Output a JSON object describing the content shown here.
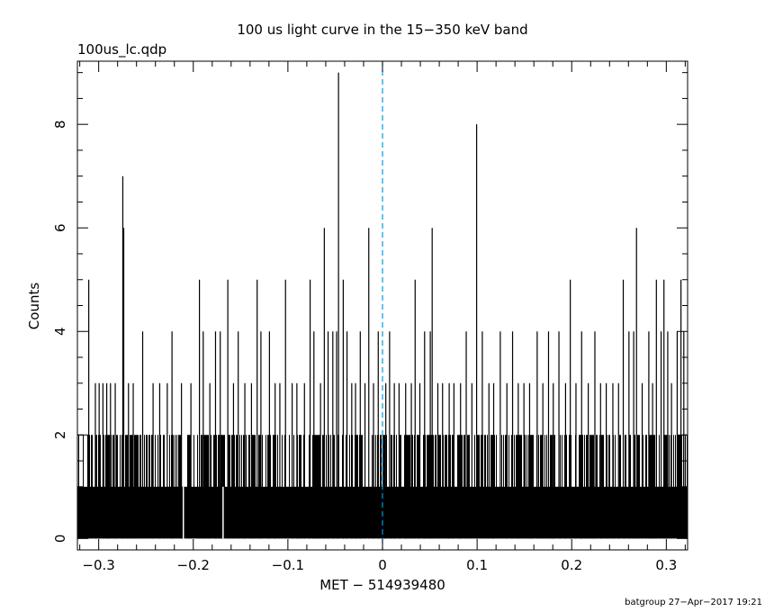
{
  "chart_data": {
    "type": "bar",
    "title": "100 us light curve in the 15−350 keV band",
    "file_label": "100us_lc.qdp",
    "xlabel": "MET − 514939480",
    "ylabel": "Counts",
    "footer": "batgroup 27−Apr−2017 19:21",
    "xlim": [
      -0.3225,
      0.3225
    ],
    "ylim": [
      -0.22,
      9.22
    ],
    "bin_width": 0.0001,
    "x_ticks": [
      -0.3,
      -0.2,
      -0.1,
      0,
      0.1,
      0.2,
      0.3
    ],
    "x_tick_labels": [
      "−0.3",
      "−0.2",
      "−0.1",
      "0",
      "0.1",
      "0.2",
      "0.3"
    ],
    "y_ticks": [
      0,
      2,
      4,
      6,
      8
    ],
    "y_tick_labels": [
      "0",
      "2",
      "4",
      "6",
      "8"
    ],
    "reference_line": {
      "x": 0,
      "color": "#1a8fd0",
      "style": "dashed"
    },
    "baseline_level": 1,
    "frequent_level": 2,
    "gaps": [
      -0.2105,
      -0.1685
    ],
    "spikes": [
      {
        "x": -0.3105,
        "y": 5
      },
      {
        "x": -0.3035,
        "y": 3
      },
      {
        "x": -0.2995,
        "y": 3
      },
      {
        "x": -0.2955,
        "y": 3
      },
      {
        "x": -0.2915,
        "y": 3
      },
      {
        "x": -0.2875,
        "y": 3
      },
      {
        "x": -0.2825,
        "y": 3
      },
      {
        "x": -0.2745,
        "y": 7
      },
      {
        "x": -0.2735,
        "y": 6
      },
      {
        "x": -0.2685,
        "y": 3
      },
      {
        "x": -0.2635,
        "y": 3
      },
      {
        "x": -0.2535,
        "y": 4
      },
      {
        "x": -0.2425,
        "y": 3
      },
      {
        "x": -0.2355,
        "y": 3
      },
      {
        "x": -0.2275,
        "y": 3
      },
      {
        "x": -0.2225,
        "y": 4
      },
      {
        "x": -0.2125,
        "y": 3
      },
      {
        "x": -0.2025,
        "y": 3
      },
      {
        "x": -0.1935,
        "y": 5
      },
      {
        "x": -0.1895,
        "y": 4
      },
      {
        "x": -0.1825,
        "y": 3
      },
      {
        "x": -0.1765,
        "y": 4
      },
      {
        "x": -0.1715,
        "y": 4
      },
      {
        "x": -0.1635,
        "y": 5
      },
      {
        "x": -0.1575,
        "y": 3
      },
      {
        "x": -0.1525,
        "y": 4
      },
      {
        "x": -0.1455,
        "y": 3
      },
      {
        "x": -0.1385,
        "y": 3
      },
      {
        "x": -0.1325,
        "y": 5
      },
      {
        "x": -0.1285,
        "y": 4
      },
      {
        "x": -0.1195,
        "y": 4
      },
      {
        "x": -0.1135,
        "y": 3
      },
      {
        "x": -0.1085,
        "y": 3
      },
      {
        "x": -0.1025,
        "y": 5
      },
      {
        "x": -0.0955,
        "y": 3
      },
      {
        "x": -0.0905,
        "y": 3
      },
      {
        "x": -0.0825,
        "y": 3
      },
      {
        "x": -0.0765,
        "y": 5
      },
      {
        "x": -0.0725,
        "y": 4
      },
      {
        "x": -0.0655,
        "y": 3
      },
      {
        "x": -0.0615,
        "y": 6
      },
      {
        "x": -0.0575,
        "y": 4
      },
      {
        "x": -0.0525,
        "y": 4
      },
      {
        "x": -0.0485,
        "y": 4
      },
      {
        "x": -0.0465,
        "y": 9
      },
      {
        "x": -0.0415,
        "y": 5
      },
      {
        "x": -0.0375,
        "y": 4
      },
      {
        "x": -0.0325,
        "y": 3
      },
      {
        "x": -0.0285,
        "y": 3
      },
      {
        "x": -0.0235,
        "y": 4
      },
      {
        "x": -0.0185,
        "y": 3
      },
      {
        "x": -0.0145,
        "y": 6
      },
      {
        "x": -0.0095,
        "y": 3
      },
      {
        "x": -0.0045,
        "y": 4
      },
      {
        "x": 0.0035,
        "y": 3
      },
      {
        "x": 0.0075,
        "y": 4
      },
      {
        "x": 0.0125,
        "y": 3
      },
      {
        "x": 0.0175,
        "y": 3
      },
      {
        "x": 0.0245,
        "y": 3
      },
      {
        "x": 0.0305,
        "y": 3
      },
      {
        "x": 0.0345,
        "y": 5
      },
      {
        "x": 0.0395,
        "y": 3
      },
      {
        "x": 0.0445,
        "y": 4
      },
      {
        "x": 0.0505,
        "y": 4
      },
      {
        "x": 0.0525,
        "y": 6
      },
      {
        "x": 0.0585,
        "y": 3
      },
      {
        "x": 0.0635,
        "y": 3
      },
      {
        "x": 0.0705,
        "y": 3
      },
      {
        "x": 0.0755,
        "y": 3
      },
      {
        "x": 0.0825,
        "y": 3
      },
      {
        "x": 0.0885,
        "y": 4
      },
      {
        "x": 0.0945,
        "y": 3
      },
      {
        "x": 0.0995,
        "y": 8
      },
      {
        "x": 0.1055,
        "y": 4
      },
      {
        "x": 0.1125,
        "y": 3
      },
      {
        "x": 0.1175,
        "y": 3
      },
      {
        "x": 0.1245,
        "y": 4
      },
      {
        "x": 0.1315,
        "y": 3
      },
      {
        "x": 0.1375,
        "y": 4
      },
      {
        "x": 0.1435,
        "y": 3
      },
      {
        "x": 0.1495,
        "y": 3
      },
      {
        "x": 0.1555,
        "y": 3
      },
      {
        "x": 0.1635,
        "y": 4
      },
      {
        "x": 0.1695,
        "y": 3
      },
      {
        "x": 0.1755,
        "y": 4
      },
      {
        "x": 0.1805,
        "y": 3
      },
      {
        "x": 0.1865,
        "y": 4
      },
      {
        "x": 0.1935,
        "y": 3
      },
      {
        "x": 0.1985,
        "y": 5
      },
      {
        "x": 0.2045,
        "y": 3
      },
      {
        "x": 0.2105,
        "y": 4
      },
      {
        "x": 0.2175,
        "y": 3
      },
      {
        "x": 0.2245,
        "y": 4
      },
      {
        "x": 0.2305,
        "y": 3
      },
      {
        "x": 0.2365,
        "y": 3
      },
      {
        "x": 0.2435,
        "y": 3
      },
      {
        "x": 0.2495,
        "y": 3
      },
      {
        "x": 0.2545,
        "y": 5
      },
      {
        "x": 0.2605,
        "y": 4
      },
      {
        "x": 0.2655,
        "y": 4
      },
      {
        "x": 0.2685,
        "y": 6
      },
      {
        "x": 0.2745,
        "y": 3
      },
      {
        "x": 0.2815,
        "y": 4
      },
      {
        "x": 0.2855,
        "y": 3
      },
      {
        "x": 0.2895,
        "y": 5
      },
      {
        "x": 0.2945,
        "y": 4
      },
      {
        "x": 0.2975,
        "y": 5
      },
      {
        "x": 0.3015,
        "y": 4
      },
      {
        "x": 0.3055,
        "y": 3
      },
      {
        "x": 0.3115,
        "y": 4
      },
      {
        "x": 0.3155,
        "y": 5
      },
      {
        "x": 0.3185,
        "y": 4
      }
    ]
  }
}
